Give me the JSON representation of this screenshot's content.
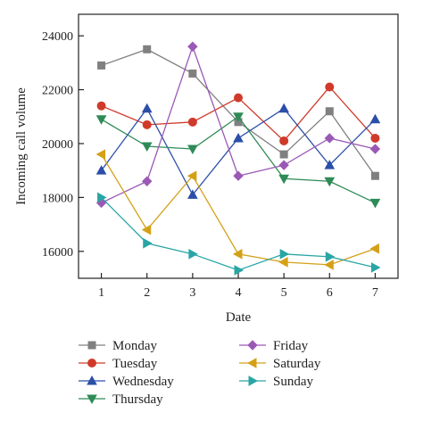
{
  "chart_data": {
    "type": "line",
    "title": "",
    "xlabel": "Date",
    "ylabel": "Incoming call volume",
    "x": [
      1,
      2,
      3,
      4,
      5,
      6,
      7
    ],
    "x_tick_labels": [
      "1",
      "2",
      "3",
      "4",
      "5",
      "6",
      "7"
    ],
    "xlim": [
      0.5,
      7.5
    ],
    "ylim": [
      15000,
      24800
    ],
    "y_ticks": [
      16000,
      18000,
      20000,
      22000,
      24000
    ],
    "y_tick_labels": [
      "16000",
      "18000",
      "20000",
      "22000",
      "24000"
    ],
    "grid": false,
    "legend_position": "bottom",
    "series": [
      {
        "name": "Monday",
        "color": "#808080",
        "marker": "square",
        "values": [
          22900,
          23500,
          22600,
          20800,
          19600,
          21200,
          18800
        ]
      },
      {
        "name": "Tuesday",
        "color": "#d03a2a",
        "marker": "circle",
        "values": [
          21400,
          20700,
          20800,
          21700,
          20100,
          22100,
          20200
        ]
      },
      {
        "name": "Wednesday",
        "color": "#2b4fa8",
        "marker": "triangle-up",
        "values": [
          19000,
          21300,
          18100,
          20200,
          21300,
          19200,
          20900
        ]
      },
      {
        "name": "Thursday",
        "color": "#2e8b57",
        "marker": "triangle-down",
        "values": [
          20900,
          19900,
          19800,
          21000,
          18700,
          18600,
          17800
        ]
      },
      {
        "name": "Friday",
        "color": "#9b59b6",
        "marker": "diamond",
        "values": [
          17800,
          18600,
          23600,
          18800,
          19200,
          20200,
          19800
        ]
      },
      {
        "name": "Saturday",
        "color": "#d4a017",
        "marker": "triangle-left",
        "values": [
          19600,
          16800,
          18800,
          15900,
          15600,
          15500,
          16100
        ]
      },
      {
        "name": "Sunday",
        "color": "#2aa5a5",
        "marker": "triangle-right",
        "values": [
          18000,
          16300,
          15900,
          15300,
          15900,
          15800,
          15400
        ]
      }
    ]
  }
}
